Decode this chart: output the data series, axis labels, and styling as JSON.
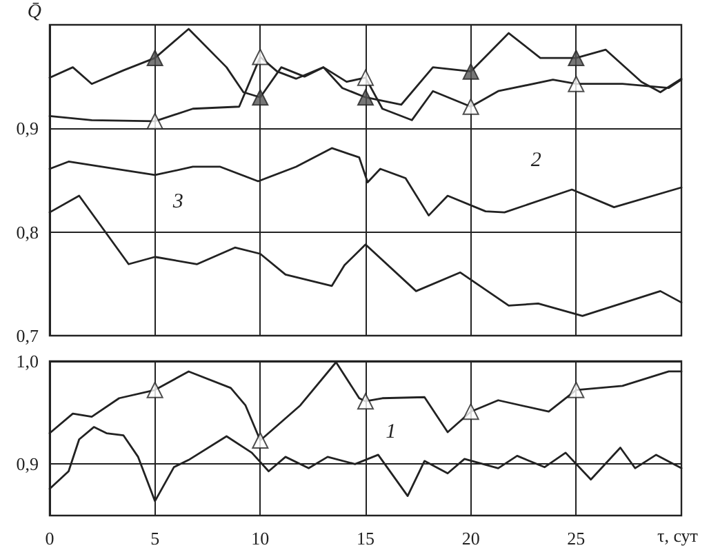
{
  "chart_data": [
    {
      "type": "line",
      "ylabel": "Q̄",
      "xlim": [
        0,
        30
      ],
      "xticks": [
        0,
        5,
        10,
        15,
        20,
        25
      ],
      "ylim": [
        0.7,
        1.0
      ],
      "yticks": [
        {
          "value": 0.7,
          "label": "0,7"
        },
        {
          "value": 0.8,
          "label": "0,8"
        },
        {
          "value": 0.9,
          "label": "0,9"
        }
      ],
      "grid": true,
      "tick_labels": "y",
      "marker": "none",
      "line_style": "solid",
      "annotations": [
        {
          "text": "3",
          "x": 6.1,
          "y": 0.829
        },
        {
          "text": "2",
          "x": 23.1,
          "y": 0.869
        }
      ],
      "series": [
        {
          "color": "#222222",
          "x": [
            0,
            1.1,
            2.0,
            3.5,
            5,
            6.6,
            8.4,
            9.2,
            10,
            11.0,
            12.1,
            13.0,
            13.9,
            15,
            16.7,
            18.2,
            20,
            21.8,
            23.3,
            25,
            26.4,
            28.1,
            29.0,
            30
          ],
          "values": [
            0.949,
            0.959,
            0.943,
            0.956,
            0.968,
            0.996,
            0.959,
            0.935,
            0.93,
            0.959,
            0.95,
            0.959,
            0.939,
            0.93,
            0.923,
            0.959,
            0.955,
            0.992,
            0.968,
            0.968,
            0.976,
            0.945,
            0.935,
            0.948
          ]
        },
        {
          "type": "scatter",
          "marker": "triangle",
          "color": "#555555",
          "x": [
            5,
            10,
            15,
            20,
            25
          ],
          "values": [
            0.968,
            0.93,
            0.93,
            0.955,
            0.968
          ]
        },
        {
          "color": "#222222",
          "x": [
            0,
            2,
            5,
            6.8,
            9.0,
            10,
            10.8,
            11.7,
            13.0,
            14.1,
            15,
            15.8,
            17.2,
            18.2,
            20,
            21.3,
            23.9,
            25,
            27.2,
            29.4,
            30
          ],
          "values": [
            0.912,
            0.908,
            0.907,
            0.919,
            0.921,
            0.969,
            0.955,
            0.948,
            0.959,
            0.945,
            0.949,
            0.919,
            0.908,
            0.936,
            0.921,
            0.936,
            0.947,
            0.943,
            0.943,
            0.939,
            0.947
          ]
        },
        {
          "type": "scatter",
          "marker": "triangle",
          "color": "#ffffff",
          "x": [
            5,
            10,
            15,
            20,
            25
          ],
          "values": [
            0.907,
            0.969,
            0.949,
            0.921,
            0.943
          ]
        },
        {
          "color": "#222222",
          "x": [
            0,
            0.9,
            3.1,
            5,
            6.8,
            8.1,
            9.9,
            11.7,
            13.4,
            14.7,
            15.1,
            15.7,
            16.9,
            18.0,
            18.9,
            20.7,
            21.6,
            24.8,
            26.8,
            30
          ],
          "values": [
            0.861,
            0.868,
            0.861,
            0.855,
            0.863,
            0.863,
            0.849,
            0.863,
            0.881,
            0.872,
            0.848,
            0.861,
            0.852,
            0.816,
            0.835,
            0.82,
            0.819,
            0.841,
            0.824,
            0.843
          ]
        },
        {
          "color": "#222222",
          "x": [
            0,
            1.4,
            3.75,
            5,
            7.0,
            8.8,
            10,
            11.2,
            13.4,
            14,
            15,
            17.4,
            19.5,
            21.8,
            23.2,
            25.3,
            29,
            30
          ],
          "values": [
            0.819,
            0.835,
            0.769,
            0.776,
            0.769,
            0.785,
            0.779,
            0.759,
            0.748,
            0.768,
            0.788,
            0.743,
            0.761,
            0.729,
            0.731,
            0.719,
            0.743,
            0.732
          ]
        }
      ]
    },
    {
      "type": "line",
      "xlabel": "τ, сут",
      "xlim": [
        0,
        30
      ],
      "xticks": [
        0,
        5,
        10,
        15,
        20,
        25
      ],
      "ylim": [
        0.85,
        1.0
      ],
      "yticks": [
        {
          "value": 0.9,
          "label": "0,9"
        },
        {
          "value": 1.0,
          "label": "1,0"
        }
      ],
      "grid": true,
      "marker": "none",
      "line_style": "solid",
      "annotations": [
        {
          "text": "1",
          "x": 16.2,
          "y": 0.931
        }
      ],
      "series": [
        {
          "color": "#222222",
          "x": [
            0,
            1.1,
            2.0,
            3.3,
            5,
            6.6,
            8.6,
            9.3,
            10,
            11.9,
            13.6,
            14.7,
            15,
            15.8,
            17.8,
            18.9,
            20,
            21.3,
            23.7,
            25,
            27.2,
            29.4,
            30
          ],
          "values": [
            0.93,
            0.949,
            0.946,
            0.964,
            0.972,
            0.99,
            0.974,
            0.957,
            0.923,
            0.957,
            0.999,
            0.964,
            0.961,
            0.964,
            0.965,
            0.931,
            0.951,
            0.962,
            0.951,
            0.972,
            0.976,
            0.99,
            0.99
          ]
        },
        {
          "type": "scatter",
          "marker": "triangle",
          "color": "#ffffff",
          "x": [
            5,
            10,
            15,
            20,
            25
          ],
          "values": [
            0.972,
            0.923,
            0.961,
            0.951,
            0.972
          ]
        },
        {
          "color": "#222222",
          "x": [
            0,
            0.9,
            1.4,
            2.1,
            2.7,
            3.5,
            4.2,
            5,
            5.9,
            6.6,
            8.4,
            9.6,
            10.4,
            11.2,
            12.3,
            13.2,
            14.5,
            15.6,
            17.0,
            17.8,
            18.9,
            19.7,
            21.3,
            22.2,
            23.5,
            24.5,
            25.7,
            27.1,
            27.8,
            28.8,
            30
          ],
          "values": [
            0.876,
            0.893,
            0.924,
            0.936,
            0.93,
            0.928,
            0.907,
            0.864,
            0.897,
            0.904,
            0.927,
            0.911,
            0.893,
            0.907,
            0.896,
            0.907,
            0.9,
            0.909,
            0.869,
            0.903,
            0.891,
            0.905,
            0.896,
            0.908,
            0.897,
            0.911,
            0.885,
            0.916,
            0.896,
            0.909,
            0.896
          ]
        }
      ]
    }
  ]
}
